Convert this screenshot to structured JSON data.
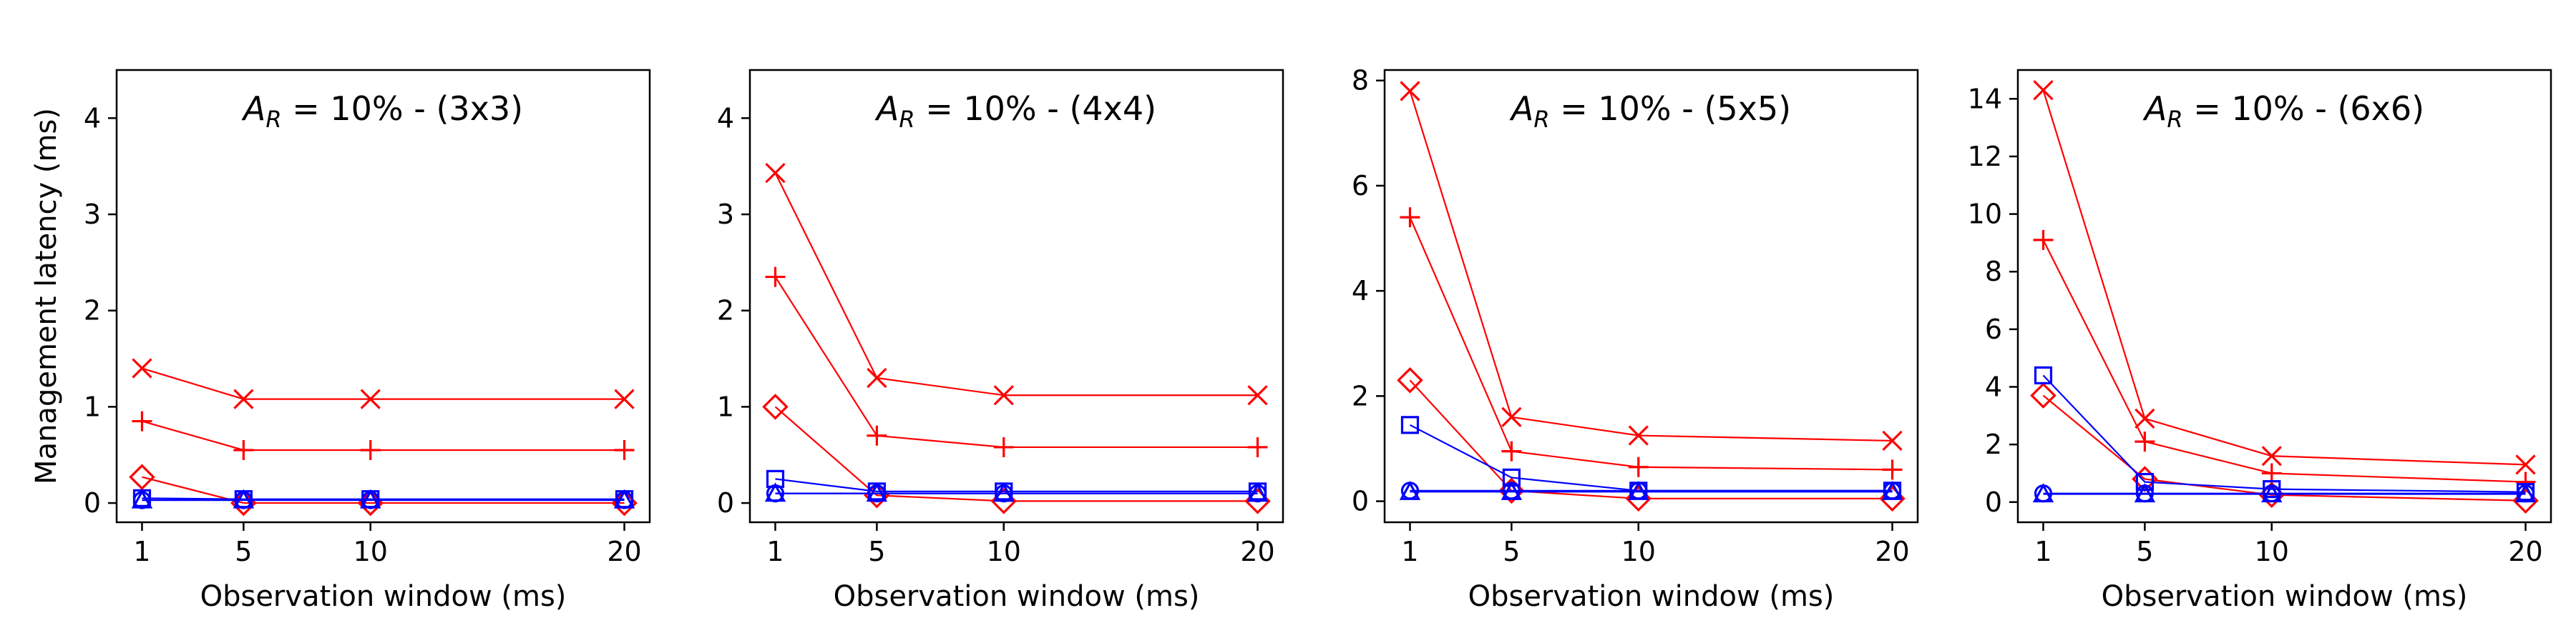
{
  "chart_data": [
    {
      "type": "line",
      "title": "A_R = 10% - (3x3)",
      "title_parts": {
        "symbol": "A",
        "subscript": "R",
        "rest": " = 10% - (3x3)"
      },
      "xlabel": "Observation window (ms)",
      "ylabel": "Management latency (ms)",
      "x": [
        1,
        5,
        10,
        20
      ],
      "xticks": [
        1,
        5,
        10,
        20
      ],
      "yticks": [
        0,
        1,
        2,
        3,
        4
      ],
      "ylim": [
        -0.2,
        4.5
      ],
      "grid": false,
      "series": [
        {
          "marker": "x",
          "color": "#ff0000",
          "values": [
            1.4,
            1.08,
            1.08,
            1.08
          ]
        },
        {
          "marker": "plus",
          "color": "#ff0000",
          "values": [
            0.85,
            0.55,
            0.55,
            0.55
          ]
        },
        {
          "marker": "diamond",
          "color": "#ff0000",
          "values": [
            0.27,
            0.0,
            0.0,
            0.0
          ]
        },
        {
          "marker": "square",
          "color": "#0000ff",
          "values": [
            0.05,
            0.04,
            0.04,
            0.04
          ]
        },
        {
          "marker": "circle",
          "color": "#0000ff",
          "values": [
            0.03,
            0.03,
            0.03,
            0.03
          ]
        },
        {
          "marker": "triangle",
          "color": "#0000ff",
          "values": [
            0.03,
            0.03,
            0.03,
            0.03
          ]
        }
      ]
    },
    {
      "type": "line",
      "title": "A_R = 10% - (4x4)",
      "title_parts": {
        "symbol": "A",
        "subscript": "R",
        "rest": " = 10% - (4x4)"
      },
      "xlabel": "Observation window (ms)",
      "ylabel": "",
      "x": [
        1,
        5,
        10,
        20
      ],
      "xticks": [
        1,
        5,
        10,
        20
      ],
      "yticks": [
        0,
        1,
        2,
        3,
        4
      ],
      "ylim": [
        -0.2,
        4.5
      ],
      "grid": false,
      "series": [
        {
          "marker": "x",
          "color": "#ff0000",
          "values": [
            3.43,
            1.3,
            1.12,
            1.12
          ]
        },
        {
          "marker": "plus",
          "color": "#ff0000",
          "values": [
            2.35,
            0.7,
            0.58,
            0.58
          ]
        },
        {
          "marker": "diamond",
          "color": "#ff0000",
          "values": [
            1.0,
            0.08,
            0.02,
            0.02
          ]
        },
        {
          "marker": "square",
          "color": "#0000ff",
          "values": [
            0.25,
            0.12,
            0.12,
            0.12
          ]
        },
        {
          "marker": "circle",
          "color": "#0000ff",
          "values": [
            0.1,
            0.1,
            0.1,
            0.1
          ]
        },
        {
          "marker": "triangle",
          "color": "#0000ff",
          "values": [
            0.1,
            0.1,
            0.1,
            0.1
          ]
        }
      ]
    },
    {
      "type": "line",
      "title": "A_R = 10% - (5x5)",
      "title_parts": {
        "symbol": "A",
        "subscript": "R",
        "rest": " = 10% - (5x5)"
      },
      "xlabel": "Observation window (ms)",
      "ylabel": "",
      "x": [
        1,
        5,
        10,
        20
      ],
      "xticks": [
        1,
        5,
        10,
        20
      ],
      "yticks": [
        0,
        2,
        4,
        6,
        8
      ],
      "ylim": [
        -0.4,
        8.2
      ],
      "grid": false,
      "series": [
        {
          "marker": "x",
          "color": "#ff0000",
          "values": [
            7.8,
            1.6,
            1.25,
            1.15
          ]
        },
        {
          "marker": "plus",
          "color": "#ff0000",
          "values": [
            5.4,
            0.95,
            0.65,
            0.6
          ]
        },
        {
          "marker": "diamond",
          "color": "#ff0000",
          "values": [
            2.3,
            0.2,
            0.05,
            0.05
          ]
        },
        {
          "marker": "square",
          "color": "#0000ff",
          "values": [
            1.45,
            0.45,
            0.2,
            0.2
          ]
        },
        {
          "marker": "circle",
          "color": "#0000ff",
          "values": [
            0.2,
            0.2,
            0.2,
            0.2
          ]
        },
        {
          "marker": "triangle",
          "color": "#0000ff",
          "values": [
            0.18,
            0.18,
            0.18,
            0.18
          ]
        }
      ]
    },
    {
      "type": "line",
      "title": "A_R = 10% - (6x6)",
      "title_parts": {
        "symbol": "A",
        "subscript": "R",
        "rest": " = 10% - (6x6)"
      },
      "xlabel": "Observation window (ms)",
      "ylabel": "",
      "x": [
        1,
        5,
        10,
        20
      ],
      "xticks": [
        1,
        5,
        10,
        20
      ],
      "yticks": [
        0,
        2,
        4,
        6,
        8,
        10,
        12,
        14
      ],
      "ylim": [
        -0.7,
        15.0
      ],
      "grid": false,
      "series": [
        {
          "marker": "x",
          "color": "#ff0000",
          "values": [
            14.3,
            2.9,
            1.6,
            1.3
          ]
        },
        {
          "marker": "plus",
          "color": "#ff0000",
          "values": [
            9.1,
            2.1,
            1.0,
            0.7
          ]
        },
        {
          "marker": "diamond",
          "color": "#ff0000",
          "values": [
            3.7,
            0.8,
            0.25,
            0.05
          ]
        },
        {
          "marker": "square",
          "color": "#0000ff",
          "values": [
            4.4,
            0.7,
            0.45,
            0.35
          ]
        },
        {
          "marker": "circle",
          "color": "#0000ff",
          "values": [
            0.3,
            0.3,
            0.3,
            0.3
          ]
        },
        {
          "marker": "triangle",
          "color": "#0000ff",
          "values": [
            0.28,
            0.28,
            0.28,
            0.28
          ]
        }
      ]
    }
  ]
}
